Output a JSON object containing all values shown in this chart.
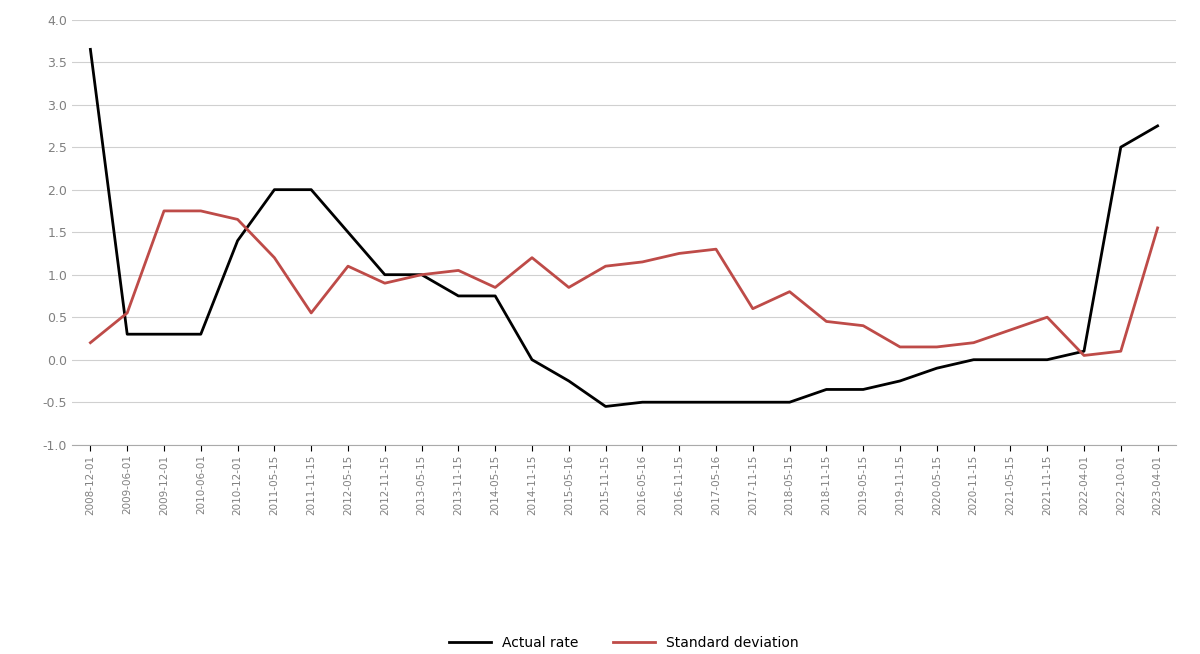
{
  "actual_rate": {
    "dates": [
      "2008-12-01",
      "2009-06-01",
      "2009-12-01",
      "2010-06-01",
      "2010-12-01",
      "2011-05-15",
      "2011-11-15",
      "2012-05-15",
      "2012-11-15",
      "2013-05-15",
      "2013-11-15",
      "2014-05-15",
      "2014-11-15",
      "2015-05-16",
      "2015-11-15",
      "2016-05-16",
      "2016-11-15",
      "2017-05-16",
      "2017-11-15",
      "2018-05-15",
      "2018-11-15",
      "2019-05-15",
      "2019-11-15",
      "2020-05-15",
      "2020-11-15",
      "2021-05-15",
      "2021-11-15",
      "2022-04-01",
      "2022-10-01",
      "2023-04-01"
    ],
    "values": [
      3.65,
      0.3,
      0.3,
      0.3,
      1.4,
      2.0,
      2.0,
      1.5,
      1.0,
      1.0,
      0.75,
      0.75,
      0.0,
      -0.25,
      -0.55,
      -0.5,
      -0.5,
      -0.5,
      -0.5,
      -0.5,
      -0.35,
      -0.35,
      -0.25,
      -0.1,
      0.0,
      0.0,
      0.0,
      0.1,
      2.5,
      2.75
    ]
  },
  "std_dev": {
    "dates": [
      "2008-12-01",
      "2009-06-01",
      "2009-12-01",
      "2010-06-01",
      "2010-12-01",
      "2011-05-15",
      "2011-11-15",
      "2012-05-15",
      "2012-11-15",
      "2013-05-15",
      "2013-11-15",
      "2014-05-15",
      "2014-11-15",
      "2015-05-16",
      "2015-11-15",
      "2016-05-16",
      "2016-11-15",
      "2017-05-16",
      "2017-11-15",
      "2018-05-15",
      "2018-11-15",
      "2019-05-15",
      "2019-11-15",
      "2020-05-15",
      "2020-11-15",
      "2021-05-15",
      "2021-11-15",
      "2022-04-01",
      "2022-10-01",
      "2023-04-01"
    ],
    "values": [
      0.2,
      0.55,
      1.75,
      1.75,
      1.65,
      1.2,
      0.55,
      1.1,
      0.9,
      1.0,
      1.05,
      0.85,
      1.2,
      0.85,
      1.1,
      1.15,
      1.25,
      1.3,
      0.6,
      0.8,
      0.45,
      0.4,
      0.15,
      0.15,
      0.2,
      0.35,
      0.5,
      0.05,
      0.1,
      1.55
    ]
  },
  "actual_rate_color": "#000000",
  "std_dev_color": "#be4b48",
  "line_width": 2.0,
  "ylim": [
    -1.0,
    4.0
  ],
  "yticks": [
    -1.0,
    -0.5,
    0.0,
    0.5,
    1.0,
    1.5,
    2.0,
    2.5,
    3.0,
    3.5,
    4.0
  ],
  "legend_actual": "Actual rate",
  "legend_std": "Standard deviation",
  "background_color": "#ffffff",
  "grid_color": "#d0d0d0"
}
